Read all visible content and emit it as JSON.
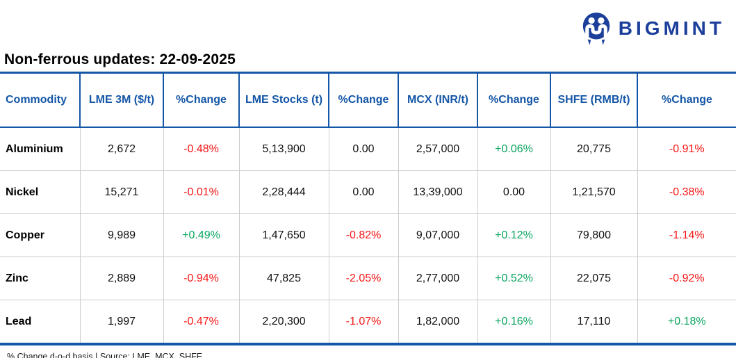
{
  "brand": {
    "name": "BIGMINT"
  },
  "title": "Non-ferrous updates: 22-09-2025",
  "footer": "% Change d-o-d basis | Source: LME, MCX, SHFE",
  "colors": {
    "accent_blue": "#1456A7",
    "logo_blue": "#1C3F9C",
    "positive_green": "#09A55E",
    "negative_red": "#F51515",
    "grid_gray": "#CCCCCC"
  },
  "table": {
    "columns": [
      "Commodity",
      "LME 3M ($/t)",
      "%Change",
      "LME Stocks (t)",
      "%Change",
      "MCX (INR/t)",
      "%Change",
      "SHFE (RMB/t)",
      "%Change"
    ],
    "rows": [
      {
        "commodity": "Aluminium",
        "cells": [
          {
            "v": "2,672"
          },
          {
            "v": "-0.48%",
            "trend": "down"
          },
          {
            "v": "5,13,900"
          },
          {
            "v": "0.00",
            "trend": "flat"
          },
          {
            "v": "2,57,000"
          },
          {
            "v": "+0.06%",
            "trend": "up"
          },
          {
            "v": "20,775"
          },
          {
            "v": "-0.91%",
            "trend": "down"
          }
        ]
      },
      {
        "commodity": "Nickel",
        "cells": [
          {
            "v": "15,271"
          },
          {
            "v": "-0.01%",
            "trend": "down"
          },
          {
            "v": "2,28,444"
          },
          {
            "v": "0.00",
            "trend": "flat"
          },
          {
            "v": "13,39,000"
          },
          {
            "v": "0.00",
            "trend": "flat"
          },
          {
            "v": "1,21,570"
          },
          {
            "v": "-0.38%",
            "trend": "down"
          }
        ]
      },
      {
        "commodity": "Copper",
        "cells": [
          {
            "v": "9,989"
          },
          {
            "v": "+0.49%",
            "trend": "up"
          },
          {
            "v": "1,47,650"
          },
          {
            "v": "-0.82%",
            "trend": "down"
          },
          {
            "v": "9,07,000"
          },
          {
            "v": "+0.12%",
            "trend": "up"
          },
          {
            "v": "79,800"
          },
          {
            "v": "-1.14%",
            "trend": "down"
          }
        ]
      },
      {
        "commodity": "Zinc",
        "cells": [
          {
            "v": "2,889"
          },
          {
            "v": "-0.94%",
            "trend": "down"
          },
          {
            "v": "47,825"
          },
          {
            "v": "-2.05%",
            "trend": "down"
          },
          {
            "v": "2,77,000"
          },
          {
            "v": "+0.52%",
            "trend": "up"
          },
          {
            "v": "22,075"
          },
          {
            "v": "-0.92%",
            "trend": "down"
          }
        ]
      },
      {
        "commodity": "Lead",
        "cells": [
          {
            "v": "1,997"
          },
          {
            "v": "-0.47%",
            "trend": "down"
          },
          {
            "v": "2,20,300"
          },
          {
            "v": "-1.07%",
            "trend": "down"
          },
          {
            "v": "1,82,000"
          },
          {
            "v": "+0.16%",
            "trend": "up"
          },
          {
            "v": "17,110"
          },
          {
            "v": "+0.18%",
            "trend": "up"
          }
        ]
      }
    ]
  },
  "chart_data": {
    "type": "table",
    "title": "Non-ferrous updates: 22-09-2025",
    "columns": [
      "Commodity",
      "LME 3M ($/t)",
      "%Change",
      "LME Stocks (t)",
      "%Change",
      "MCX (INR/t)",
      "%Change",
      "SHFE (RMB/t)",
      "%Change"
    ],
    "rows": [
      [
        "Aluminium",
        "2,672",
        "-0.48%",
        "5,13,900",
        "0.00",
        "2,57,000",
        "+0.06%",
        "20,775",
        "-0.91%"
      ],
      [
        "Nickel",
        "15,271",
        "-0.01%",
        "2,28,444",
        "0.00",
        "13,39,000",
        "0.00",
        "1,21,570",
        "-0.38%"
      ],
      [
        "Copper",
        "9,989",
        "+0.49%",
        "1,47,650",
        "-0.82%",
        "9,07,000",
        "+0.12%",
        "79,800",
        "-1.14%"
      ],
      [
        "Zinc",
        "2,889",
        "-0.94%",
        "47,825",
        "-2.05%",
        "2,77,000",
        "+0.52%",
        "22,075",
        "-0.92%"
      ],
      [
        "Lead",
        "1,997",
        "-0.47%",
        "2,20,300",
        "-1.07%",
        "1,82,000",
        "+0.16%",
        "17,110",
        "+0.18%"
      ]
    ],
    "notes": "% Change d-o-d basis | Source: LME, MCX, SHFE"
  }
}
